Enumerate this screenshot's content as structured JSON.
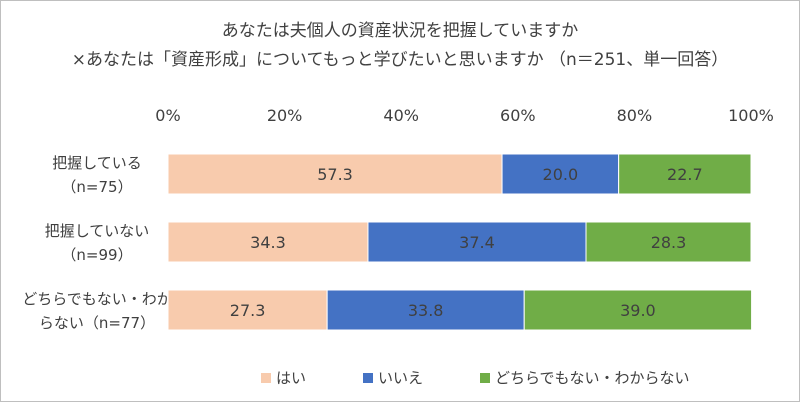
{
  "chart_data": {
    "type": "bar",
    "orientation": "horizontal",
    "stacked": true,
    "title_lines": [
      "あなたは夫個人の資産状況を把握していますか",
      "×あなたは「資産形成」についてもっと学びたいと思いますか （n＝251、単一回答）"
    ],
    "categories": [
      [
        "把握している",
        "（n=75）"
      ],
      [
        "把握していない",
        "（n=99）"
      ],
      [
        "どちらでもない・わか",
        "らない（n=77）"
      ]
    ],
    "x_ticks": [
      "0%",
      "20%",
      "40%",
      "60%",
      "80%",
      "100%"
    ],
    "xlim": [
      0,
      100
    ],
    "series": [
      {
        "name": "はい",
        "color": "#f8cbad",
        "values": [
          57.3,
          34.3,
          27.3
        ]
      },
      {
        "name": "いいえ",
        "color": "#4472c4",
        "values": [
          20.0,
          37.4,
          33.8
        ]
      },
      {
        "name": "どちらでもない・わからない",
        "color": "#70ad47",
        "values": [
          22.7,
          28.3,
          39.0
        ]
      }
    ],
    "data_labels": [
      [
        "57.3",
        "20.0",
        "22.7"
      ],
      [
        "34.3",
        "37.4",
        "28.3"
      ],
      [
        "27.3",
        "33.8",
        "39.0"
      ]
    ],
    "grid": false,
    "legend": "bottom"
  }
}
